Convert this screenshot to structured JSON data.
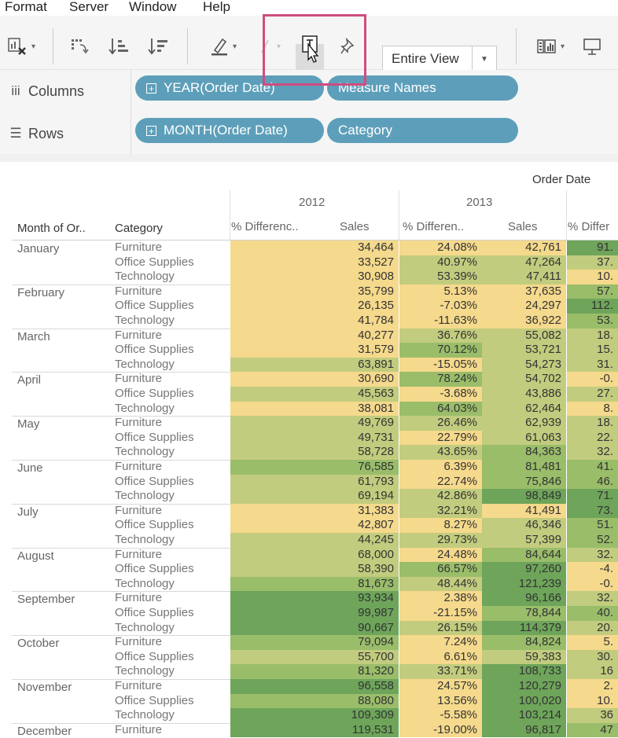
{
  "menu": {
    "items": [
      "Format",
      "Server",
      "Window",
      "Help"
    ]
  },
  "toolbar": {
    "fit_label": "Entire View",
    "icons": [
      "clear-sheet",
      "swap-rows-columns",
      "sort-ascending",
      "sort-descending",
      "highlight",
      "group-members",
      "show-mark-labels",
      "fix-axes",
      "show-me",
      "presentation-mode"
    ]
  },
  "shelves": {
    "columns_label": "Columns",
    "rows_label": "Rows",
    "columns_pills": [
      "YEAR(Order Date)",
      "Measure Names"
    ],
    "rows_pills": [
      "MONTH(Order Date)",
      "Category"
    ]
  },
  "view": {
    "top_header": "Order Date",
    "years": [
      "2012",
      "2013"
    ],
    "measures": [
      "% Differenc..",
      "Sales",
      "% Differen..",
      "Sales",
      "% Differ"
    ],
    "row_headers": [
      "Month of Or..",
      "Category"
    ],
    "colors": {
      "yellow": "#f5d98c",
      "light_green": "#c2cc7e",
      "mid_green": "#9abd6a",
      "dark_green": "#6ea55a"
    },
    "categories": [
      "Furniture",
      "Office Supplies",
      "Technology"
    ],
    "months": [
      {
        "name": "January",
        "rows": [
          {
            "s12": "34,464",
            "d13": "24.08%",
            "s13": "42,761",
            "d14": "91."
          },
          {
            "s12": "33,527",
            "d13": "40.97%",
            "s13": "47,264",
            "d14": "37."
          },
          {
            "s12": "30,908",
            "d13": "53.39%",
            "s13": "47,411",
            "d14": "10."
          }
        ]
      },
      {
        "name": "February",
        "rows": [
          {
            "s12": "35,799",
            "d13": "5.13%",
            "s13": "37,635",
            "d14": "57."
          },
          {
            "s12": "26,135",
            "d13": "-7.03%",
            "s13": "24,297",
            "d14": "112."
          },
          {
            "s12": "41,784",
            "d13": "-11.63%",
            "s13": "36,922",
            "d14": "53."
          }
        ]
      },
      {
        "name": "March",
        "rows": [
          {
            "s12": "40,277",
            "d13": "36.76%",
            "s13": "55,082",
            "d14": "18."
          },
          {
            "s12": "31,579",
            "d13": "70.12%",
            "s13": "53,721",
            "d14": "15."
          },
          {
            "s12": "63,891",
            "d13": "-15.05%",
            "s13": "54,273",
            "d14": "31."
          }
        ]
      },
      {
        "name": "April",
        "rows": [
          {
            "s12": "30,690",
            "d13": "78.24%",
            "s13": "54,702",
            "d14": "-0."
          },
          {
            "s12": "45,563",
            "d13": "-3.68%",
            "s13": "43,886",
            "d14": "27."
          },
          {
            "s12": "38,081",
            "d13": "64.03%",
            "s13": "62,464",
            "d14": "8."
          }
        ]
      },
      {
        "name": "May",
        "rows": [
          {
            "s12": "49,769",
            "d13": "26.46%",
            "s13": "62,939",
            "d14": "18."
          },
          {
            "s12": "49,731",
            "d13": "22.79%",
            "s13": "61,063",
            "d14": "22."
          },
          {
            "s12": "58,728",
            "d13": "43.65%",
            "s13": "84,363",
            "d14": "32."
          }
        ]
      },
      {
        "name": "June",
        "rows": [
          {
            "s12": "76,585",
            "d13": "6.39%",
            "s13": "81,481",
            "d14": "41."
          },
          {
            "s12": "61,793",
            "d13": "22.74%",
            "s13": "75,846",
            "d14": "46."
          },
          {
            "s12": "69,194",
            "d13": "42.86%",
            "s13": "98,849",
            "d14": "71."
          }
        ]
      },
      {
        "name": "July",
        "rows": [
          {
            "s12": "31,383",
            "d13": "32.21%",
            "s13": "41,491",
            "d14": "73."
          },
          {
            "s12": "42,807",
            "d13": "8.27%",
            "s13": "46,346",
            "d14": "51."
          },
          {
            "s12": "44,245",
            "d13": "29.73%",
            "s13": "57,399",
            "d14": "52."
          }
        ]
      },
      {
        "name": "August",
        "rows": [
          {
            "s12": "68,000",
            "d13": "24.48%",
            "s13": "84,644",
            "d14": "32."
          },
          {
            "s12": "58,390",
            "d13": "66.57%",
            "s13": "97,260",
            "d14": "-4."
          },
          {
            "s12": "81,673",
            "d13": "48.44%",
            "s13": "121,239",
            "d14": "-0."
          }
        ]
      },
      {
        "name": "September",
        "rows": [
          {
            "s12": "93,934",
            "d13": "2.38%",
            "s13": "96,166",
            "d14": "32."
          },
          {
            "s12": "99,987",
            "d13": "-21.15%",
            "s13": "78,844",
            "d14": "40."
          },
          {
            "s12": "90,667",
            "d13": "26.15%",
            "s13": "114,379",
            "d14": "20."
          }
        ]
      },
      {
        "name": "October",
        "rows": [
          {
            "s12": "79,094",
            "d13": "7.24%",
            "s13": "84,824",
            "d14": "5."
          },
          {
            "s12": "55,700",
            "d13": "6.61%",
            "s13": "59,383",
            "d14": "30."
          },
          {
            "s12": "81,320",
            "d13": "33.71%",
            "s13": "108,733",
            "d14": "16"
          }
        ]
      },
      {
        "name": "November",
        "rows": [
          {
            "s12": "96,558",
            "d13": "24.57%",
            "s13": "120,279",
            "d14": "2."
          },
          {
            "s12": "88,080",
            "d13": "13.56%",
            "s13": "100,020",
            "d14": "10."
          },
          {
            "s12": "109,309",
            "d13": "-5.58%",
            "s13": "103,214",
            "d14": "36"
          }
        ]
      },
      {
        "name": "December",
        "rows": [
          {
            "s12": "119,531",
            "d13": "-19.00%",
            "s13": "96,817",
            "d14": "47"
          }
        ]
      }
    ]
  }
}
